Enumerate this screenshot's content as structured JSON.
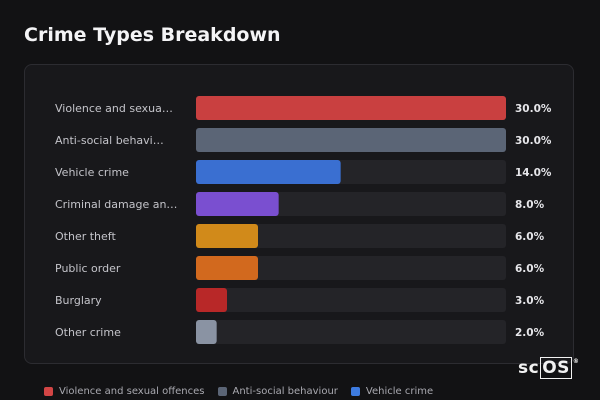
{
  "page": {
    "title": "Crime Types Breakdown"
  },
  "logo": {
    "prefix": "sc",
    "boxed": "OS",
    "mark": "®"
  },
  "chart_data": {
    "type": "bar",
    "orientation": "horizontal",
    "title": "Crime Types Breakdown",
    "xlim": [
      0,
      30
    ],
    "grid": false,
    "legend": "bottom",
    "categories": [
      "Violence and sexua…",
      "Anti-social behavi…",
      "Vehicle crime",
      "Criminal damage an…",
      "Other theft",
      "Public order",
      "Burglary",
      "Other crime"
    ],
    "values": [
      30.0,
      30.0,
      14.0,
      8.0,
      6.0,
      6.0,
      3.0,
      2.0
    ],
    "value_labels": [
      "30.0%",
      "30.0%",
      "14.0%",
      "8.0%",
      "6.0%",
      "6.0%",
      "3.0%",
      "2.0%"
    ],
    "colors": [
      "#c94040",
      "#5b6576",
      "#3a6fd1",
      "#7a4fd0",
      "#d18a1a",
      "#d2691e",
      "#b82828",
      "#8a93a3"
    ],
    "legend_entries": [
      {
        "label": "Violence and sexual offences",
        "color": "#d24545"
      },
      {
        "label": "Anti-social behaviour",
        "color": "#5b6576"
      },
      {
        "label": "Vehicle crime",
        "color": "#3d7be0"
      }
    ]
  }
}
